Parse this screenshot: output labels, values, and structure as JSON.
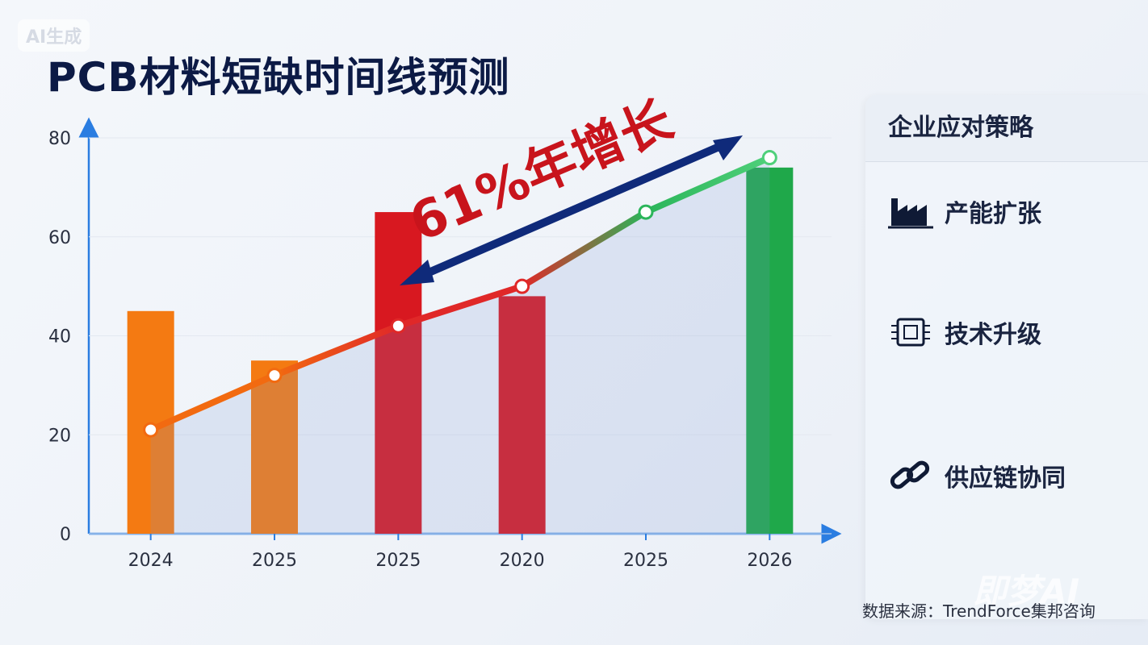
{
  "badge": "AI生成",
  "title": "PCB材料短缺时间线预测",
  "chart_data": {
    "type": "combo",
    "categories": [
      "2024",
      "2025",
      "2025",
      "2020",
      "2025",
      "2026"
    ],
    "ylim": [
      0,
      80
    ],
    "yticks": [
      0,
      20,
      40,
      60,
      80
    ],
    "annotation": "61%年增长",
    "series": [
      {
        "type": "bar",
        "colors": [
          "#f47a12",
          "#f47a12",
          "#d81820",
          "#d81820",
          "#d81820",
          "#1fa84a"
        ],
        "values": [
          45,
          35,
          65,
          48,
          null,
          74
        ]
      },
      {
        "type": "line",
        "colors": [
          "#f26a10",
          "#f26a10",
          "#e02828",
          "#e02828",
          "#2bb55a",
          "#4fd07a"
        ],
        "values": [
          21,
          32,
          42,
          50,
          65,
          76
        ]
      }
    ]
  },
  "panel": {
    "title": "企业应对策略",
    "items": [
      "产能扩张",
      "技术升级",
      "供应链协同"
    ]
  },
  "source": "数据来源：TrendForce集邦咨询",
  "watermark": "即梦AI"
}
